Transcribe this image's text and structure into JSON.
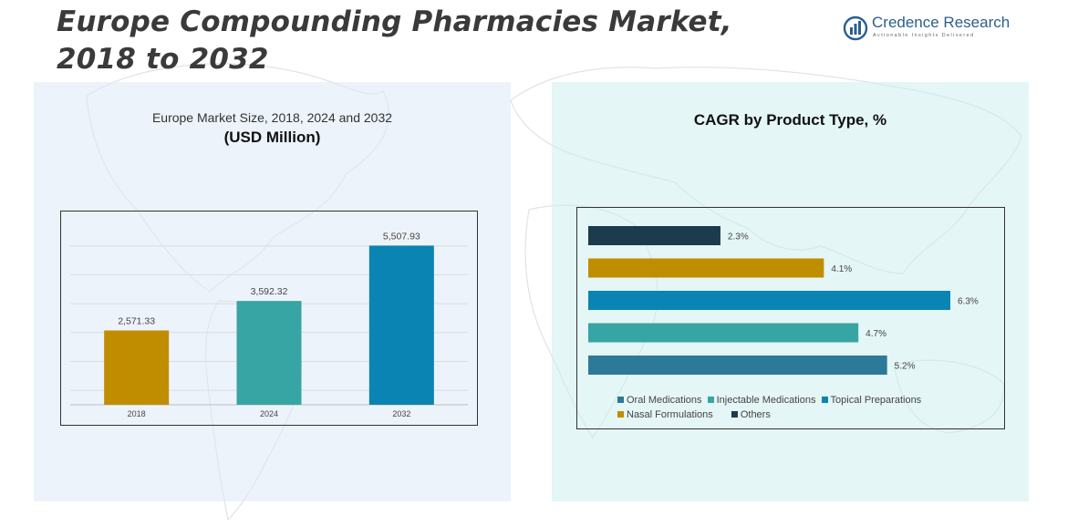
{
  "title": "Europe Compounding Pharmacies Market, 2018 to 2032",
  "brand": {
    "name": "Credence Research",
    "tagline": "Actionable Insights Delivered",
    "logo_icon": "credence-bars-logo"
  },
  "left_panel": {
    "subtitle_line1": "Europe Market Size, 2018, 2024 and 2032",
    "subtitle_line2": "(USD Million)"
  },
  "right_panel": {
    "subtitle": "CAGR by Product Type, %"
  },
  "chart_data": [
    {
      "type": "bar",
      "categories": [
        "2018",
        "2024",
        "2032"
      ],
      "values": [
        2571.33,
        3592.32,
        5507.93
      ],
      "value_labels": [
        "2,571.33",
        "3,592.32",
        "5,507.93"
      ],
      "colors": [
        "#c08d00",
        "#36a5a4",
        "#0a84b3"
      ],
      "ylim": [
        0,
        6500
      ],
      "gridlines": [
        500,
        1500,
        2500,
        3500,
        4500,
        5500
      ],
      "grid": true,
      "xlabel": "",
      "ylabel": ""
    },
    {
      "type": "bar",
      "orientation": "horizontal",
      "categories": [
        "Others",
        "Nasal Formulations",
        "Topical Preparations",
        "Injectable Medications",
        "Oral Medications"
      ],
      "values": [
        2.3,
        4.1,
        6.3,
        4.7,
        5.2
      ],
      "value_labels": [
        "2.3%",
        "4.1%",
        "6.3%",
        "4.7%",
        "5.2%"
      ],
      "colors": [
        "#1c3b4c",
        "#c08d00",
        "#0a84b3",
        "#36a5a4",
        "#2c7a98"
      ],
      "xlim": [
        0,
        6.3
      ],
      "grid": false,
      "legend_position": "bottom",
      "legend": [
        {
          "name": "Oral Medications",
          "color": "#2c7a98"
        },
        {
          "name": "Injectable Medications",
          "color": "#36a5a4"
        },
        {
          "name": "Topical Preparations",
          "color": "#0a84b3"
        },
        {
          "name": "Nasal Formulations",
          "color": "#c08d00"
        },
        {
          "name": "Others",
          "color": "#1c3b4c"
        }
      ]
    }
  ]
}
